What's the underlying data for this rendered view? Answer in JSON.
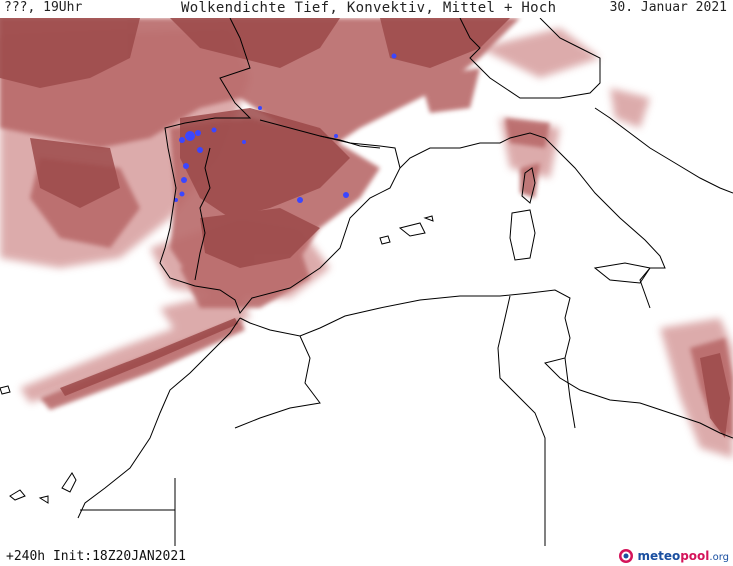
{
  "header": {
    "left": "???, 19Uhr",
    "title": "Wolkendichte  Tief, Konvektiv, Mittel + Hoch",
    "date": "30. Januar 2021"
  },
  "footer": {
    "run": "+240h  Init:18Z20JAN2021"
  },
  "logo": {
    "part1": "meteo",
    "part2": "pool",
    "part3": ".org",
    "icon": "meteopool-logo-icon"
  },
  "colors": {
    "cloud_dense": "#9c4a4a",
    "cloud_medium": "#b96a6a",
    "cloud_light": "#d9a3a3",
    "convective": "#3b46ff",
    "coast": "#000000",
    "background": "#ffffff"
  }
}
